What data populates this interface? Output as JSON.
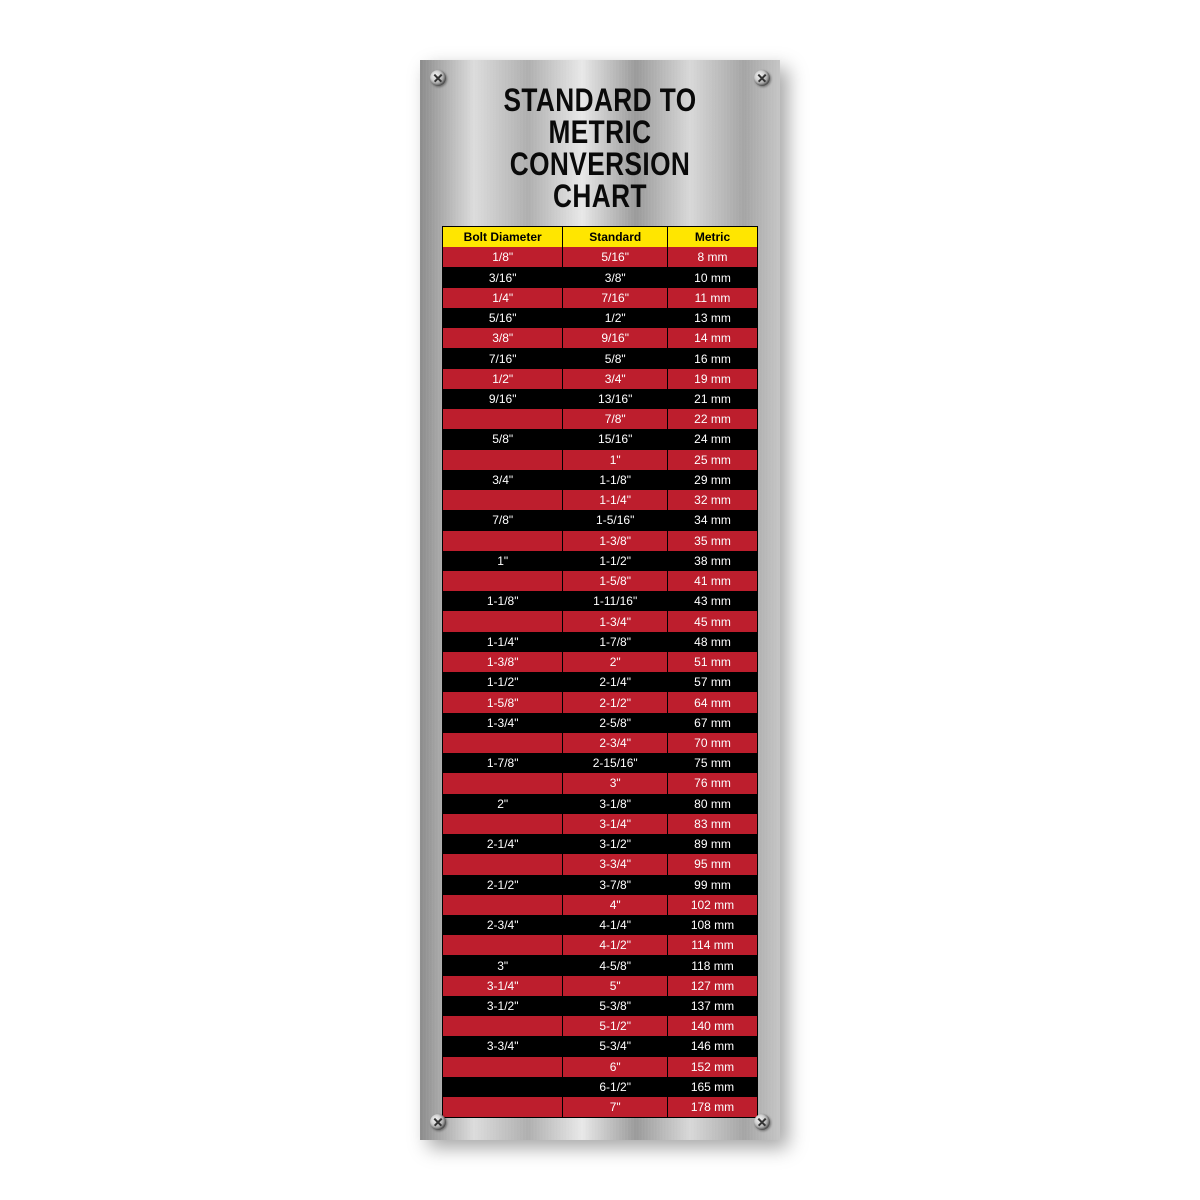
{
  "title_line1": "STANDARD TO METRIC",
  "title_line2": "CONVERSION CHART",
  "plate": {
    "background": "brushed-metal",
    "shadow_color": "rgba(0,0,0,0.35)"
  },
  "table": {
    "type": "table",
    "header_bg": "#ffe600",
    "header_text_color": "#000000",
    "row_color_a": "#bd1e2d",
    "row_color_b": "#000000",
    "cell_text_color": "#ffffff",
    "cell_border_color": "#000000",
    "font_size": 12,
    "columns": [
      "Bolt Diameter",
      "Standard",
      "Metric"
    ],
    "column_proportions": [
      1.15,
      1.0,
      0.85
    ],
    "rows": [
      [
        "1/8\"",
        "5/16\"",
        "8 mm"
      ],
      [
        "3/16\"",
        "3/8\"",
        "10 mm"
      ],
      [
        "1/4\"",
        "7/16\"",
        "11 mm"
      ],
      [
        "5/16\"",
        "1/2\"",
        "13 mm"
      ],
      [
        "3/8\"",
        "9/16\"",
        "14 mm"
      ],
      [
        "7/16\"",
        "5/8\"",
        "16 mm"
      ],
      [
        "1/2\"",
        "3/4\"",
        "19 mm"
      ],
      [
        "9/16\"",
        "13/16\"",
        "21 mm"
      ],
      [
        "",
        "7/8\"",
        "22 mm"
      ],
      [
        "5/8\"",
        "15/16\"",
        "24 mm"
      ],
      [
        "",
        "1\"",
        "25 mm"
      ],
      [
        "3/4\"",
        "1-1/8\"",
        "29 mm"
      ],
      [
        "",
        "1-1/4\"",
        "32 mm"
      ],
      [
        "7/8\"",
        "1-5/16\"",
        "34 mm"
      ],
      [
        "",
        "1-3/8\"",
        "35 mm"
      ],
      [
        "1\"",
        "1-1/2\"",
        "38 mm"
      ],
      [
        "",
        "1-5/8\"",
        "41 mm"
      ],
      [
        "1-1/8\"",
        "1-11/16\"",
        "43 mm"
      ],
      [
        "",
        "1-3/4\"",
        "45 mm"
      ],
      [
        "1-1/4\"",
        "1-7/8\"",
        "48 mm"
      ],
      [
        "1-3/8\"",
        "2\"",
        "51 mm"
      ],
      [
        "1-1/2\"",
        "2-1/4\"",
        "57 mm"
      ],
      [
        "1-5/8\"",
        "2-1/2\"",
        "64 mm"
      ],
      [
        "1-3/4\"",
        "2-5/8\"",
        "67 mm"
      ],
      [
        "",
        "2-3/4\"",
        "70 mm"
      ],
      [
        "1-7/8\"",
        "2-15/16\"",
        "75 mm"
      ],
      [
        "",
        "3\"",
        "76 mm"
      ],
      [
        "2\"",
        "3-1/8\"",
        "80 mm"
      ],
      [
        "",
        "3-1/4\"",
        "83 mm"
      ],
      [
        "2-1/4\"",
        "3-1/2\"",
        "89 mm"
      ],
      [
        "",
        "3-3/4\"",
        "95 mm"
      ],
      [
        "2-1/2\"",
        "3-7/8\"",
        "99 mm"
      ],
      [
        "",
        "4\"",
        "102 mm"
      ],
      [
        "2-3/4\"",
        "4-1/4\"",
        "108 mm"
      ],
      [
        "",
        "4-1/2\"",
        "114 mm"
      ],
      [
        "3\"",
        "4-5/8\"",
        "118 mm"
      ],
      [
        "3-1/4\"",
        "5\"",
        "127 mm"
      ],
      [
        "3-1/2\"",
        "5-3/8\"",
        "137 mm"
      ],
      [
        "",
        "5-1/2\"",
        "140 mm"
      ],
      [
        "3-3/4\"",
        "5-3/4\"",
        "146 mm"
      ],
      [
        "",
        "6\"",
        "152 mm"
      ],
      [
        "",
        "6-1/2\"",
        "165 mm"
      ],
      [
        "",
        "7\"",
        "178 mm"
      ]
    ]
  }
}
